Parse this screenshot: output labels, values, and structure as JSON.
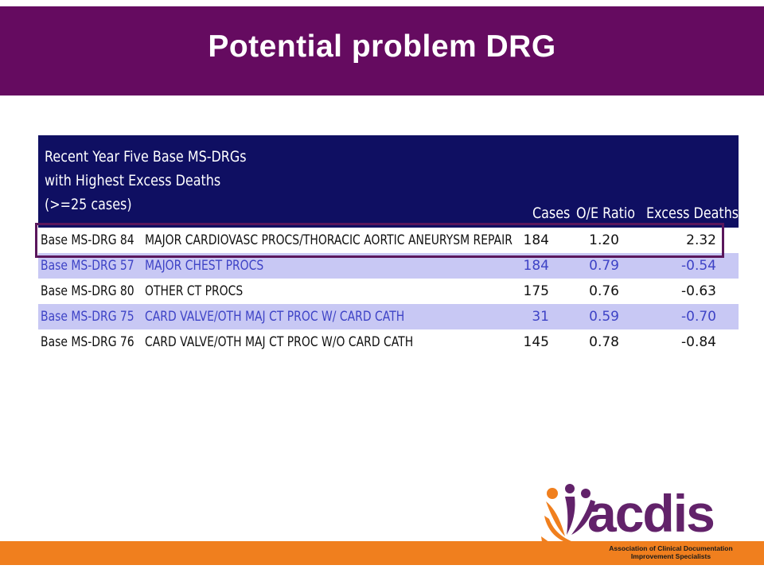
{
  "slide": {
    "title": "Potential problem DRG"
  },
  "report": {
    "caption_lines": [
      "Recent Year Five Base MS-DRGs",
      "with Highest Excess Deaths",
      "(>=25 cases)"
    ],
    "columns": {
      "cases": "Cases",
      "oe_ratio": "O/E Ratio",
      "excess_deaths": "Excess Deaths"
    },
    "rows": [
      {
        "drg": "Base MS-DRG 84",
        "description": "MAJOR CARDIOVASC PROCS/THORACIC AORTIC ANEURYSM REPAIR",
        "cases": "184",
        "oe_ratio": "1.20",
        "excess_deaths": "2.32"
      },
      {
        "drg": "Base MS-DRG 57",
        "description": "MAJOR CHEST PROCS",
        "cases": "184",
        "oe_ratio": "0.79",
        "excess_deaths": "-0.54"
      },
      {
        "drg": "Base MS-DRG 80",
        "description": "OTHER CT PROCS",
        "cases": "175",
        "oe_ratio": "0.76",
        "excess_deaths": "-0.63"
      },
      {
        "drg": "Base MS-DRG 75",
        "description": "CARD VALVE/OTH MAJ CT PROC W/ CARD CATH",
        "cases": "31",
        "oe_ratio": "0.59",
        "excess_deaths": "-0.70"
      },
      {
        "drg": "Base MS-DRG 76",
        "description": "CARD VALVE/OTH MAJ CT PROC W/O CARD CATH",
        "cases": "145",
        "oe_ratio": "0.78",
        "excess_deaths": "-0.84"
      }
    ],
    "highlighted_row": 0
  },
  "logo": {
    "word": "acdis",
    "tagline_lines": [
      "Association of Clinical Documentation",
      "Improvement Specialists"
    ]
  },
  "colors": {
    "title_bar": "#650b60",
    "table_header": "#0f0f62",
    "alt_row": "#c8c8f4",
    "alt_row_text": "#3e43c6",
    "highlight_border": "#5a175c",
    "bottom_strip": "#f07f1e",
    "logo_purple": "#62226a",
    "logo_orange": "#f07f1e"
  }
}
